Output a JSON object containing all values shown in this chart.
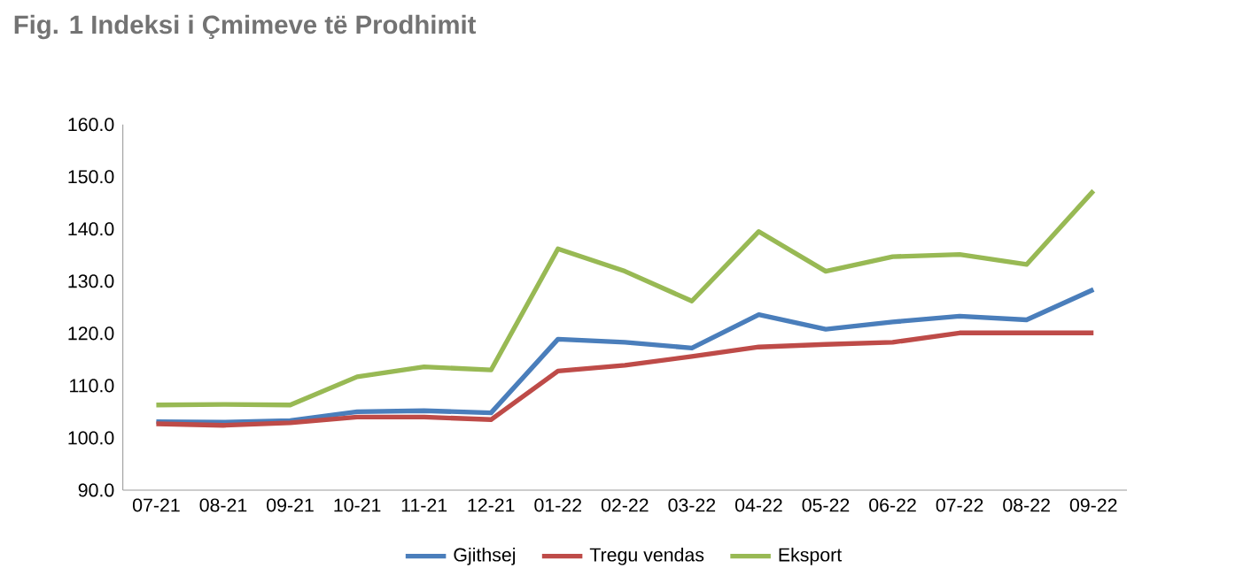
{
  "chart_data": {
    "type": "line",
    "title": "Fig. 1 Indeksi i Çmimeve të Prodhimit",
    "categories": [
      "07-21",
      "08-21",
      "09-21",
      "10-21",
      "11-21",
      "12-21",
      "01-22",
      "02-22",
      "03-22",
      "04-22",
      "05-22",
      "06-22",
      "07-22",
      "08-22",
      "09-22"
    ],
    "series": [
      {
        "name": "Gjithsej",
        "color": "#4a7ebb",
        "values": [
          103.1,
          103.0,
          103.3,
          105.0,
          105.2,
          104.8,
          118.9,
          118.3,
          117.2,
          123.6,
          120.8,
          122.2,
          123.3,
          122.6,
          128.4
        ]
      },
      {
        "name": "Tregu vendas",
        "color": "#be4b48",
        "values": [
          102.7,
          102.4,
          102.9,
          104.0,
          104.0,
          103.5,
          112.8,
          113.9,
          115.6,
          117.4,
          117.9,
          118.3,
          120.1,
          120.1,
          120.1
        ]
      },
      {
        "name": "Eksport",
        "color": "#98b954",
        "values": [
          106.3,
          106.4,
          106.3,
          111.7,
          113.6,
          113.0,
          136.2,
          131.9,
          126.2,
          139.5,
          131.9,
          134.7,
          135.1,
          133.2,
          147.3
        ]
      }
    ],
    "ylim": [
      90,
      160
    ],
    "yticks": [
      {
        "value": 90,
        "label": "90.0"
      },
      {
        "value": 100,
        "label": "100.0"
      },
      {
        "value": 110,
        "label": "110.0"
      },
      {
        "value": 120,
        "label": "120.0"
      },
      {
        "value": 130,
        "label": "130.0"
      },
      {
        "value": 140,
        "label": "140.0"
      },
      {
        "value": 150,
        "label": "150.0"
      },
      {
        "value": 160,
        "label": "160.0"
      }
    ],
    "grid": false,
    "legend": "bottom",
    "marker": "none",
    "line_style": "solid"
  }
}
